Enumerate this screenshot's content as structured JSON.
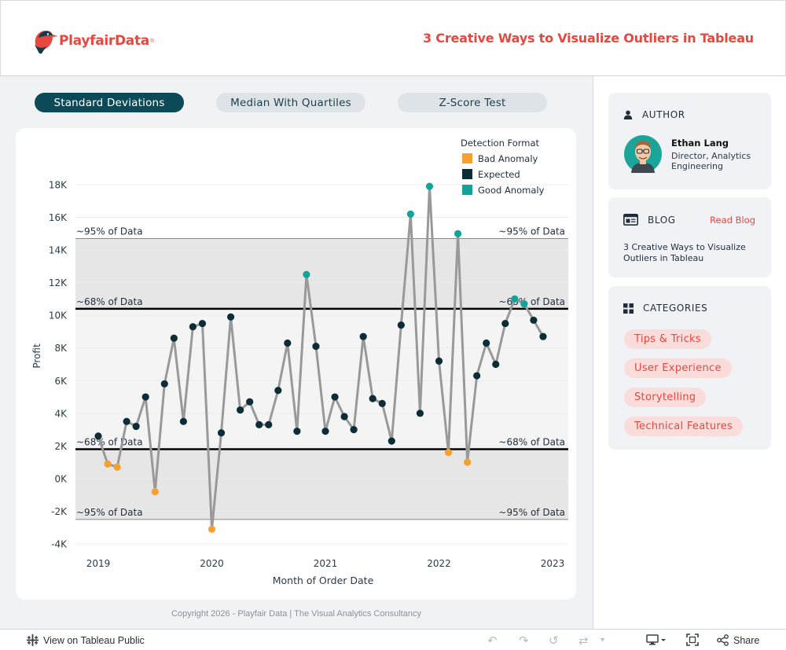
{
  "header": {
    "logo_text": "PlayfairData",
    "logo_reg": "®",
    "title": "3 Creative Ways to Visualize Outliers in Tableau"
  },
  "tabs": [
    {
      "label": "Standard Deviations",
      "active": true
    },
    {
      "label": "Median With Quartiles",
      "active": false
    },
    {
      "label": "Z-Score Test",
      "active": false
    }
  ],
  "chart_data": {
    "type": "line",
    "title": "",
    "xlabel": "Month of Order Date",
    "ylabel": "Profit",
    "ylim": [
      -4500,
      19200
    ],
    "y_ticks": [
      18000,
      16000,
      14000,
      12000,
      10000,
      8000,
      6000,
      4000,
      2000,
      0,
      -2000,
      -4000
    ],
    "y_tick_labels": [
      "18K",
      "16K",
      "14K",
      "12K",
      "10K",
      "8K",
      "6K",
      "4K",
      "2K",
      "0K",
      "-2K",
      "-4K"
    ],
    "x_tick_labels": [
      "2019",
      "2020",
      "2021",
      "2022",
      "2023"
    ],
    "x_ticks": [
      "2019-01",
      "2020-01",
      "2021-01",
      "2022-01",
      "2023-01"
    ],
    "legend": {
      "title": "Detection Format",
      "position": "top-right",
      "items": [
        {
          "label": "Bad Anomaly",
          "color": "#f5a02f"
        },
        {
          "label": "Expected",
          "color": "#0c2d37"
        },
        {
          "label": "Good Anomaly",
          "color": "#14a39a"
        }
      ]
    },
    "bands": {
      "sd95_upper": 14700,
      "sd68_upper": 10400,
      "sd68_lower": 1800,
      "sd95_lower": -2500,
      "labels": {
        "sd95": "~95% of Data",
        "sd68": "~68% of Data"
      },
      "outer_band_color": "#e6e6e6",
      "inner_band_color": "#f4f4f4"
    },
    "line_color": "#999999",
    "series": [
      {
        "x": [
          "2019-01",
          "2019-02",
          "2019-03",
          "2019-04",
          "2019-05",
          "2019-06",
          "2019-07",
          "2019-08",
          "2019-09",
          "2019-10",
          "2019-11",
          "2019-12",
          "2020-01",
          "2020-02",
          "2020-03",
          "2020-04",
          "2020-05",
          "2020-06",
          "2020-07",
          "2020-08",
          "2020-09",
          "2020-10",
          "2020-11",
          "2020-12",
          "2021-01",
          "2021-02",
          "2021-03",
          "2021-04",
          "2021-05",
          "2021-06",
          "2021-07",
          "2021-08",
          "2021-09",
          "2021-10",
          "2021-11",
          "2021-12",
          "2022-01",
          "2022-02",
          "2022-03",
          "2022-04",
          "2022-05",
          "2022-06",
          "2022-07",
          "2022-08",
          "2022-09",
          "2022-10",
          "2022-11",
          "2022-12"
        ],
        "values": [
          2600,
          900,
          700,
          3500,
          3200,
          5000,
          -800,
          5800,
          8600,
          3500,
          9300,
          9500,
          -3100,
          2800,
          9900,
          4200,
          4700,
          3300,
          3300,
          5400,
          8300,
          2900,
          12500,
          8100,
          2900,
          5000,
          3800,
          3000,
          8700,
          4900,
          4600,
          2300,
          9400,
          16200,
          4000,
          17900,
          7200,
          1600,
          15000,
          1000,
          6300,
          8300,
          7000,
          9500,
          11000,
          10700,
          9700,
          8700
        ],
        "categories": [
          "Expected",
          "Bad Anomaly",
          "Bad Anomaly",
          "Expected",
          "Expected",
          "Expected",
          "Bad Anomaly",
          "Expected",
          "Expected",
          "Expected",
          "Expected",
          "Expected",
          "Bad Anomaly",
          "Expected",
          "Expected",
          "Expected",
          "Expected",
          "Expected",
          "Expected",
          "Expected",
          "Expected",
          "Expected",
          "Good Anomaly",
          "Expected",
          "Expected",
          "Expected",
          "Expected",
          "Expected",
          "Expected",
          "Expected",
          "Expected",
          "Expected",
          "Expected",
          "Good Anomaly",
          "Expected",
          "Good Anomaly",
          "Expected",
          "Bad Anomaly",
          "Good Anomaly",
          "Bad Anomaly",
          "Expected",
          "Expected",
          "Expected",
          "Expected",
          "Good Anomaly",
          "Good Anomaly",
          "Expected",
          "Expected"
        ]
      }
    ]
  },
  "copyright": "Copyright 2026 - Playfair Data | The Visual Analytics Consultancy",
  "sidebar": {
    "author": {
      "heading": "AUTHOR",
      "name": "Ethan Lang",
      "role": "Director, Analytics Engineering"
    },
    "blog": {
      "heading": "BLOG",
      "link": "Read Blog",
      "title": "3 Creative Ways to Visualize Outliers in Tableau"
    },
    "categories": {
      "heading": "CATEGORIES",
      "items": [
        "Tips & Tricks",
        "User Experience",
        "Storytelling",
        "Technical Features"
      ]
    }
  },
  "toolbar": {
    "view_label": "View on Tableau Public",
    "share_label": "Share"
  }
}
